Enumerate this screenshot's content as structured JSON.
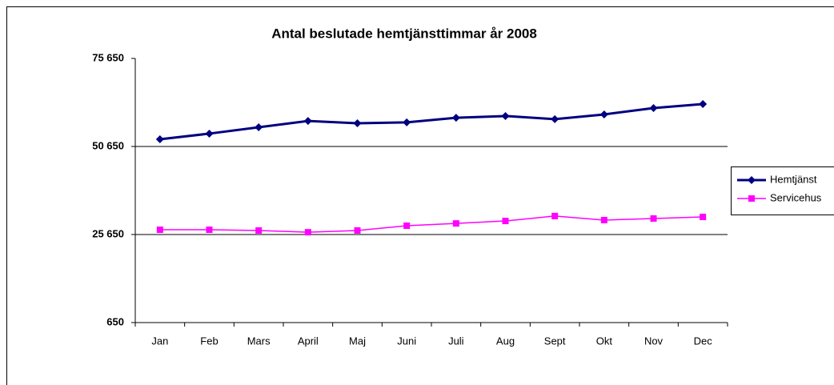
{
  "chart_data": {
    "type": "line",
    "title": "Antal beslutade hemtjänsttimmar år 2008",
    "categories": [
      "Jan",
      "Feb",
      "Mars",
      "April",
      "Maj",
      "Juni",
      "Juli",
      "Aug",
      "Sept",
      "Okt",
      "Nov",
      "Dec"
    ],
    "series": [
      {
        "name": "Hemtjänst",
        "color": "#000080",
        "marker": "diamond",
        "values": [
          52700,
          54300,
          56100,
          57900,
          57250,
          57500,
          58800,
          59300,
          58400,
          59750,
          61550,
          62700
        ]
      },
      {
        "name": "Servicehus",
        "color": "#ff00ff",
        "marker": "square",
        "values": [
          27000,
          27000,
          26800,
          26300,
          26800,
          28150,
          28800,
          29500,
          30900,
          29750,
          30200,
          30650
        ]
      }
    ],
    "ylim": [
      650,
      75650
    ],
    "yticks": [
      {
        "value": 650,
        "label": "650"
      },
      {
        "value": 25650,
        "label": "25 650"
      },
      {
        "value": 50650,
        "label": "50 650"
      },
      {
        "value": 75650,
        "label": "75 650"
      }
    ],
    "grid": true,
    "legend": "right"
  }
}
